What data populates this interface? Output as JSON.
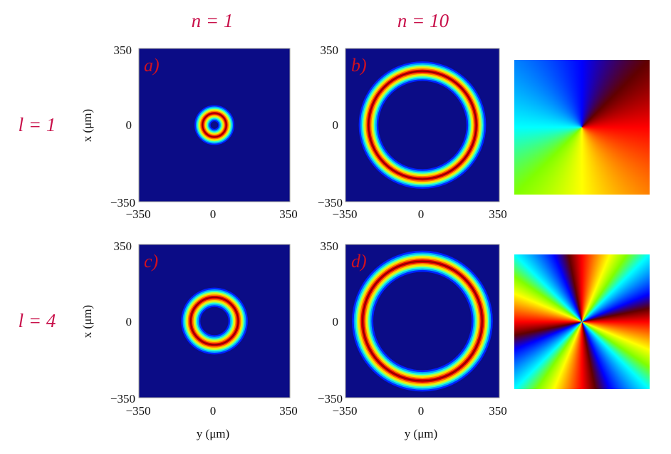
{
  "column_headers": [
    "n = 1",
    "n = 10"
  ],
  "row_headers": [
    "l = 1",
    "l = 4"
  ],
  "ticks": {
    "min": "−350",
    "mid": "0",
    "max": "350"
  },
  "xlabel": "y (μm)",
  "ylabel": "x (μm)",
  "colors": {
    "background": "#0b0c86",
    "header_red": "#c8104a",
    "panel_letter": "#d01020"
  },
  "chart_data": [
    {
      "type": "heatmap",
      "label": "a)",
      "n": 1,
      "l": 1,
      "ring_radius": 55,
      "ring_width": 40,
      "xlim": [
        -350,
        350
      ],
      "ylim": [
        -350,
        350
      ],
      "colormap": "jet"
    },
    {
      "type": "heatmap",
      "label": "b)",
      "n": 10,
      "l": 1,
      "ring_radius": 245,
      "ring_width": 48,
      "xlim": [
        -350,
        350
      ],
      "ylim": [
        -350,
        350
      ],
      "colormap": "jet"
    },
    {
      "type": "heatmap",
      "label": "c)",
      "n": 1,
      "l": 4,
      "ring_radius": 110,
      "ring_width": 48,
      "xlim": [
        -350,
        350
      ],
      "ylim": [
        -350,
        350
      ],
      "colormap": "jet"
    },
    {
      "type": "heatmap",
      "label": "d)",
      "n": 10,
      "l": 4,
      "ring_radius": 272,
      "ring_width": 52,
      "xlim": [
        -350,
        350
      ],
      "ylim": [
        -350,
        350
      ],
      "colormap": "jet"
    }
  ],
  "phase_maps": [
    {
      "name": "phase-map-l1",
      "l": 1,
      "colormap": "jet"
    },
    {
      "name": "phase-map-l4",
      "l": 4,
      "colormap": "jet"
    }
  ]
}
